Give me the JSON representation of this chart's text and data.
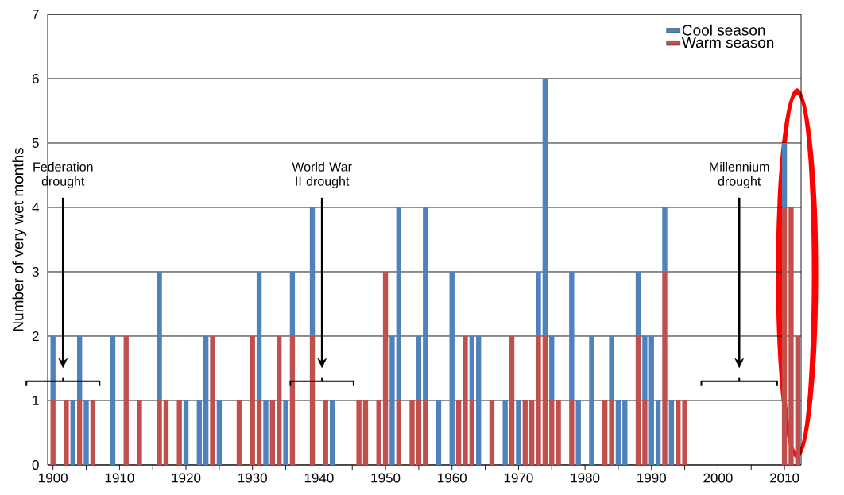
{
  "chart_data": {
    "type": "bar",
    "stacked": true,
    "ylabel": "Number of very wet months",
    "x": [
      1900,
      1902,
      1903,
      1904,
      1905,
      1906,
      1909,
      1911,
      1913,
      1916,
      1917,
      1919,
      1920,
      1922,
      1923,
      1924,
      1925,
      1928,
      1930,
      1931,
      1932,
      1933,
      1934,
      1935,
      1936,
      1939,
      1941,
      1942,
      1946,
      1947,
      1949,
      1950,
      1951,
      1952,
      1954,
      1955,
      1956,
      1958,
      1960,
      1961,
      1962,
      1963,
      1964,
      1966,
      1968,
      1969,
      1970,
      1971,
      1972,
      1973,
      1974,
      1975,
      1976,
      1978,
      1979,
      1981,
      1983,
      1984,
      1985,
      1986,
      1988,
      1989,
      1990,
      1991,
      1992,
      1993,
      1994,
      1995,
      2010,
      2011,
      2012
    ],
    "series": [
      {
        "name": "Warm season",
        "color": "#c0504d",
        "values": [
          1,
          1,
          null,
          1,
          null,
          1,
          null,
          2,
          1,
          1,
          1,
          1,
          null,
          null,
          null,
          2,
          null,
          1,
          2,
          1,
          null,
          1,
          2,
          null,
          2,
          2,
          1,
          null,
          1,
          1,
          1,
          3,
          null,
          1,
          1,
          1,
          1,
          null,
          null,
          1,
          2,
          1,
          null,
          1,
          null,
          2,
          null,
          1,
          1,
          2,
          2,
          1,
          1,
          1,
          null,
          null,
          1,
          1,
          null,
          null,
          2,
          1,
          null,
          null,
          3,
          null,
          1,
          1,
          4,
          4,
          2
        ]
      },
      {
        "name": "Cool season",
        "color": "#4f81bd",
        "values": [
          1,
          null,
          1,
          1,
          1,
          null,
          2,
          null,
          null,
          2,
          null,
          null,
          1,
          1,
          2,
          null,
          1,
          null,
          null,
          2,
          1,
          null,
          null,
          1,
          1,
          2,
          null,
          1,
          null,
          null,
          null,
          null,
          2,
          3,
          null,
          1,
          3,
          1,
          3,
          null,
          null,
          1,
          2,
          null,
          1,
          null,
          1,
          null,
          null,
          1,
          4,
          1,
          null,
          2,
          1,
          2,
          null,
          1,
          1,
          1,
          1,
          1,
          2,
          1,
          1,
          1,
          null,
          null,
          1,
          null,
          null
        ]
      }
    ],
    "xlim": [
      1899.2,
      2012.5
    ],
    "ylim": [
      0,
      7
    ],
    "xticks": [
      1900,
      {
        "value": 1905,
        "label": null
      },
      1910,
      {
        "value": 1915,
        "label": null
      },
      1920,
      {
        "value": 1925,
        "label": null
      },
      1930,
      {
        "value": 1935,
        "label": null
      },
      1940,
      {
        "value": 1945,
        "label": null
      },
      1950,
      {
        "value": 1955,
        "label": null
      },
      1960,
      {
        "value": 1965,
        "label": null
      },
      1970,
      {
        "value": 1975,
        "label": null
      },
      1980,
      {
        "value": 1985,
        "label": null
      },
      1990,
      {
        "value": 1995,
        "label": null
      },
      2000,
      {
        "value": 2005,
        "label": null
      },
      2010
    ],
    "yticks": [
      0,
      1,
      2,
      3,
      4,
      5,
      6,
      7
    ],
    "grid": "y",
    "legend": "top right",
    "annotations": [
      "Federation drought",
      "World War II drought",
      "Millennium drought"
    ]
  }
}
